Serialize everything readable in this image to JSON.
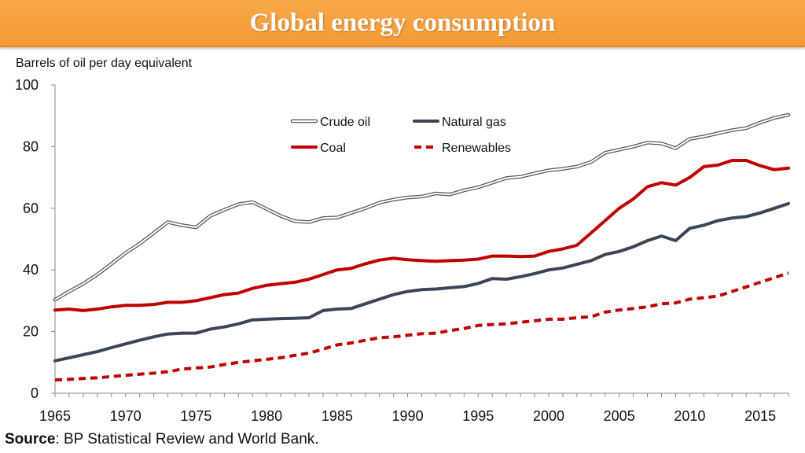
{
  "header": {
    "title": "Global energy consumption"
  },
  "units_label": "Barrels of oil per day equivalent",
  "source": {
    "label": "Source",
    "text": ": BP Statistical Review and World Bank."
  },
  "chart_data": {
    "type": "line",
    "title": "Global energy consumption",
    "ylabel": "Barrels of oil per day equivalent",
    "xlabel": "",
    "xlim": [
      1965,
      2017
    ],
    "ylim": [
      0,
      100
    ],
    "x_ticks": [
      1965,
      1970,
      1975,
      1980,
      1985,
      1990,
      1995,
      2000,
      2005,
      2010,
      2015
    ],
    "y_ticks": [
      0,
      20,
      40,
      60,
      80,
      100
    ],
    "grid": false,
    "legend_position": "top-center",
    "x": [
      1965,
      1966,
      1967,
      1968,
      1969,
      1970,
      1971,
      1972,
      1973,
      1974,
      1975,
      1976,
      1977,
      1978,
      1979,
      1980,
      1981,
      1982,
      1983,
      1984,
      1985,
      1986,
      1987,
      1988,
      1989,
      1990,
      1991,
      1992,
      1993,
      1994,
      1995,
      1996,
      1997,
      1998,
      1999,
      2000,
      2001,
      2002,
      2003,
      2004,
      2005,
      2006,
      2007,
      2008,
      2009,
      2010,
      2011,
      2012,
      2013,
      2014,
      2015,
      2016,
      2017
    ],
    "series": [
      {
        "name": "Crude oil",
        "style": "double",
        "color": "#555555",
        "values": [
          30.3,
          33.0,
          35.5,
          38.5,
          42.0,
          45.5,
          48.5,
          52.0,
          55.5,
          54.5,
          53.8,
          57.5,
          59.5,
          61.3,
          62.0,
          59.8,
          57.5,
          55.8,
          55.5,
          56.8,
          57.0,
          58.5,
          60.0,
          61.8,
          62.8,
          63.5,
          63.8,
          64.8,
          64.5,
          65.8,
          66.8,
          68.3,
          69.8,
          70.2,
          71.3,
          72.3,
          72.8,
          73.5,
          75.0,
          78.0,
          79.0,
          80.0,
          81.3,
          81.0,
          79.5,
          82.5,
          83.3,
          84.3,
          85.3,
          86.0,
          87.8,
          89.3,
          90.3
        ]
      },
      {
        "name": "Natural gas",
        "style": "solid",
        "color": "#3a4556",
        "values": [
          10.5,
          11.5,
          12.5,
          13.5,
          14.8,
          16.0,
          17.2,
          18.3,
          19.2,
          19.5,
          19.5,
          20.8,
          21.5,
          22.5,
          23.8,
          24.0,
          24.2,
          24.3,
          24.5,
          26.8,
          27.3,
          27.5,
          29.0,
          30.5,
          32.0,
          33.0,
          33.6,
          33.8,
          34.2,
          34.6,
          35.6,
          37.2,
          37.0,
          37.8,
          38.8,
          40.0,
          40.6,
          41.8,
          43.0,
          45.0,
          46.0,
          47.5,
          49.5,
          51.0,
          49.5,
          53.5,
          54.5,
          56.0,
          56.8,
          57.3,
          58.5,
          60.0,
          61.5
        ]
      },
      {
        "name": "Coal",
        "style": "solid",
        "color": "#c00000",
        "values": [
          27.0,
          27.3,
          26.8,
          27.3,
          28.0,
          28.5,
          28.5,
          28.8,
          29.5,
          29.5,
          30.0,
          31.0,
          32.0,
          32.5,
          34.0,
          35.0,
          35.5,
          36.0,
          37.0,
          38.5,
          40.0,
          40.5,
          42.0,
          43.2,
          43.8,
          43.3,
          43.0,
          42.8,
          43.0,
          43.2,
          43.5,
          44.5,
          44.5,
          44.3,
          44.5,
          46.0,
          46.8,
          48.0,
          52.0,
          56.0,
          60.0,
          63.0,
          67.0,
          68.3,
          67.5,
          70.0,
          73.5,
          74.0,
          75.5,
          75.5,
          73.8,
          72.5,
          73.0
        ]
      },
      {
        "name": "Renewables",
        "style": "dashed",
        "color": "#c00000",
        "values": [
          4.3,
          4.5,
          4.8,
          5.0,
          5.4,
          5.8,
          6.2,
          6.5,
          7.0,
          7.8,
          8.2,
          8.5,
          9.3,
          10.0,
          10.5,
          11.0,
          11.5,
          12.3,
          13.0,
          14.3,
          15.7,
          16.3,
          17.2,
          18.0,
          18.3,
          18.8,
          19.3,
          19.5,
          20.3,
          21.0,
          22.0,
          22.3,
          22.5,
          23.0,
          23.5,
          24.0,
          24.0,
          24.5,
          24.8,
          26.3,
          27.0,
          27.5,
          28.0,
          29.0,
          29.3,
          30.5,
          31.0,
          31.5,
          33.0,
          34.5,
          36.0,
          37.5,
          39.0
        ]
      }
    ]
  }
}
